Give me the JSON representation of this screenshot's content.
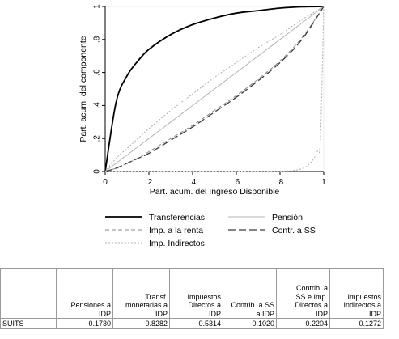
{
  "chart_data": [
    {
      "type": "line",
      "xlabel": "Part. acum. del Ingreso Disponible",
      "ylabel": "Part. acum. del componente",
      "xlim": [
        0,
        1
      ],
      "ylim": [
        0,
        1
      ],
      "x_ticks": [
        "0",
        ".2",
        ".4",
        ".6",
        ".8",
        "1"
      ],
      "y_ticks": [
        "0",
        ".2",
        ".4",
        ".6",
        ".8",
        "1"
      ],
      "grid": false,
      "legend_position": "bottom",
      "x": [
        0,
        0.05,
        0.1,
        0.15,
        0.2,
        0.3,
        0.4,
        0.5,
        0.6,
        0.7,
        0.8,
        0.9,
        1.0
      ],
      "series": [
        {
          "name": "Transferencias",
          "style": "solid-thick",
          "values": [
            0,
            0.42,
            0.58,
            0.67,
            0.74,
            0.83,
            0.89,
            0.93,
            0.96,
            0.975,
            0.99,
            0.998,
            1.0
          ]
        },
        {
          "name": "Pensión",
          "style": "solid-thin",
          "values": [
            0,
            0.05,
            0.1,
            0.15,
            0.2,
            0.3,
            0.4,
            0.5,
            0.6,
            0.7,
            0.8,
            0.9,
            1.0
          ]
        },
        {
          "name": "Imp. a la renta",
          "style": "dashed",
          "values": [
            0,
            0.02,
            0.05,
            0.08,
            0.12,
            0.2,
            0.28,
            0.37,
            0.46,
            0.56,
            0.67,
            0.81,
            1.0
          ]
        },
        {
          "name": "Contr. a SS",
          "style": "long-dash",
          "values": [
            0,
            0.02,
            0.05,
            0.08,
            0.11,
            0.19,
            0.27,
            0.36,
            0.45,
            0.55,
            0.66,
            0.8,
            1.0
          ]
        },
        {
          "name": "Imp. Indirectos",
          "style": "dotted",
          "values": [
            0,
            0.08,
            0.14,
            0.2,
            0.26,
            0.37,
            0.47,
            0.57,
            0.66,
            0.75,
            0.83,
            0.92,
            1.0
          ]
        },
        {
          "name": "",
          "style": "dotted-light",
          "x": [
            0,
            0.2,
            0.4,
            0.6,
            0.8,
            0.88,
            0.92,
            0.95,
            0.97,
            0.985,
            1.0
          ],
          "values": [
            0,
            0,
            0,
            0,
            0.002,
            0.01,
            0.03,
            0.07,
            0.12,
            0.2,
            1.0
          ]
        }
      ]
    },
    {
      "type": "table",
      "columns": [
        "",
        "Pensiones a IDP",
        "Transf. monetarias a IDP",
        "Impuestos Directos a IDP",
        "Contrib. a SS a IDP",
        "Contrib. a SS e Imp. Directos a IDP",
        "Impuestos Indirectos a IDP"
      ],
      "rows": [
        [
          "SUITS",
          "-0.1730",
          "0.8282",
          "0.5314",
          "0.1020",
          "0.2204",
          "-0.1272"
        ]
      ]
    }
  ],
  "colors": {
    "transferencias": "#000000",
    "pension": "#b5b5b5",
    "imp_renta": "#8a8a8a",
    "contr_ss": "#3a3a3a",
    "imp_indirectos": "#b0b0b0",
    "axes": "#000000"
  },
  "table_header": {
    "c1": [
      "Pensiones a",
      "IDP"
    ],
    "c2": [
      "Transf.",
      "monetarias a",
      "IDP"
    ],
    "c3": [
      "Impuestos",
      "Directos a",
      "IDP"
    ],
    "c4": [
      "Contrib. a SS",
      "a IDP"
    ],
    "c5": [
      "Contrib. a",
      "SS e Imp.",
      "Directos a",
      "IDP"
    ],
    "c6": [
      "Impuestos",
      "Indirectos a",
      "IDP"
    ]
  }
}
